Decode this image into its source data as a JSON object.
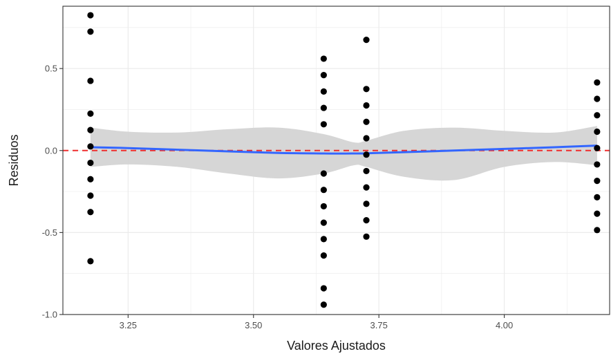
{
  "chart_data": {
    "type": "scatter",
    "title": "",
    "xlabel": "Valores Ajustados",
    "ylabel": "Residuos",
    "xlim": [
      3.12,
      4.21
    ],
    "ylim": [
      -1.0,
      0.88
    ],
    "grid": true,
    "legend": "none",
    "x_ticks": [
      3.25,
      3.5,
      3.75,
      4.0
    ],
    "x_tick_labels": [
      "3.25",
      "3.50",
      "3.75",
      "4.00"
    ],
    "y_ticks": [
      -1.0,
      -0.5,
      0.0,
      0.5
    ],
    "y_tick_labels": [
      "-1.0",
      "-0.5",
      "0.0",
      "0.5"
    ],
    "points": [
      {
        "x": 3.175,
        "y": 0.825
      },
      {
        "x": 3.175,
        "y": 0.725
      },
      {
        "x": 3.175,
        "y": 0.425
      },
      {
        "x": 3.175,
        "y": 0.225
      },
      {
        "x": 3.175,
        "y": 0.125
      },
      {
        "x": 3.175,
        "y": 0.025
      },
      {
        "x": 3.175,
        "y": -0.075
      },
      {
        "x": 3.175,
        "y": -0.175
      },
      {
        "x": 3.175,
        "y": -0.275
      },
      {
        "x": 3.175,
        "y": -0.375
      },
      {
        "x": 3.175,
        "y": -0.675
      },
      {
        "x": 3.64,
        "y": 0.56
      },
      {
        "x": 3.64,
        "y": 0.46
      },
      {
        "x": 3.64,
        "y": 0.36
      },
      {
        "x": 3.64,
        "y": 0.26
      },
      {
        "x": 3.64,
        "y": 0.16
      },
      {
        "x": 3.64,
        "y": -0.14
      },
      {
        "x": 3.64,
        "y": -0.24
      },
      {
        "x": 3.64,
        "y": -0.34
      },
      {
        "x": 3.64,
        "y": -0.44
      },
      {
        "x": 3.64,
        "y": -0.54
      },
      {
        "x": 3.64,
        "y": -0.64
      },
      {
        "x": 3.64,
        "y": -0.84
      },
      {
        "x": 3.64,
        "y": -0.94
      },
      {
        "x": 3.725,
        "y": 0.675
      },
      {
        "x": 3.725,
        "y": 0.375
      },
      {
        "x": 3.725,
        "y": 0.275
      },
      {
        "x": 3.725,
        "y": 0.175
      },
      {
        "x": 3.725,
        "y": 0.075
      },
      {
        "x": 3.725,
        "y": -0.025
      },
      {
        "x": 3.725,
        "y": -0.125
      },
      {
        "x": 3.725,
        "y": -0.225
      },
      {
        "x": 3.725,
        "y": -0.325
      },
      {
        "x": 3.725,
        "y": -0.425
      },
      {
        "x": 3.725,
        "y": -0.525
      },
      {
        "x": 4.185,
        "y": 0.415
      },
      {
        "x": 4.185,
        "y": 0.315
      },
      {
        "x": 4.185,
        "y": 0.215
      },
      {
        "x": 4.185,
        "y": 0.115
      },
      {
        "x": 4.185,
        "y": 0.015
      },
      {
        "x": 4.185,
        "y": -0.085
      },
      {
        "x": 4.185,
        "y": -0.185
      },
      {
        "x": 4.185,
        "y": -0.285
      },
      {
        "x": 4.185,
        "y": -0.385
      },
      {
        "x": 4.185,
        "y": -0.485
      }
    ],
    "smooth_line": {
      "x": [
        3.175,
        3.25,
        3.35,
        3.45,
        3.55,
        3.64,
        3.7,
        3.725,
        3.8,
        3.9,
        4.0,
        4.1,
        4.185
      ],
      "y": [
        0.02,
        0.015,
        0.005,
        -0.005,
        -0.015,
        -0.018,
        -0.018,
        -0.017,
        -0.01,
        0.0,
        0.01,
        0.02,
        0.03
      ]
    },
    "confidence_band": {
      "x": [
        3.175,
        3.25,
        3.35,
        3.45,
        3.55,
        3.64,
        3.7,
        3.725,
        3.8,
        3.9,
        4.0,
        4.1,
        4.185
      ],
      "upper": [
        0.14,
        0.115,
        0.11,
        0.13,
        0.14,
        0.1,
        0.05,
        0.06,
        0.12,
        0.14,
        0.12,
        0.11,
        0.15
      ],
      "lower": [
        -0.1,
        -0.085,
        -0.1,
        -0.14,
        -0.17,
        -0.14,
        -0.09,
        -0.1,
        -0.16,
        -0.18,
        -0.1,
        -0.07,
        -0.09
      ]
    },
    "reference_line": {
      "y": 0.0,
      "style": "dashed"
    },
    "colors": {
      "points": "#000000",
      "smooth_line": "#3366ff",
      "confidence_band": "#d4d4d4",
      "reference_line": "#ee2c2c",
      "grid": "#ebebeb",
      "panel_border": "#333333"
    }
  }
}
